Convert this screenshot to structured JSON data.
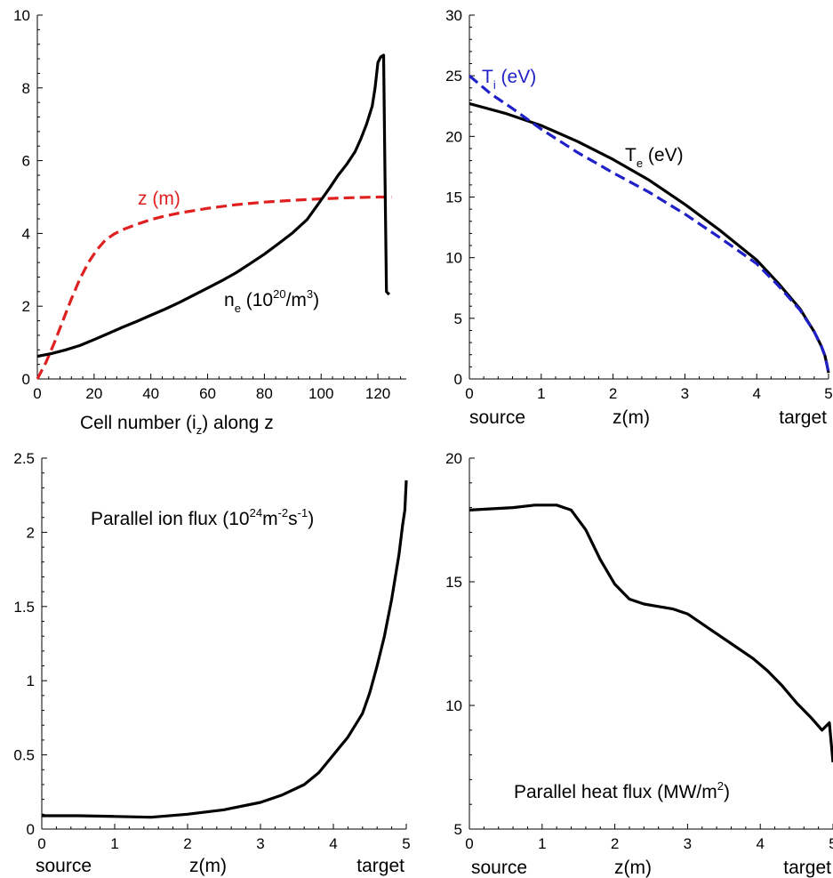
{
  "chart_data": [
    {
      "type": "line",
      "xlabel": "Cell number (i_z) along z",
      "xlabel_parts": {
        "main": "Cell number (i",
        "sub": "z",
        "tail": ") along z"
      },
      "xlim": [
        0,
        130
      ],
      "ylim": [
        0,
        10
      ],
      "xticks": [
        0,
        20,
        40,
        60,
        80,
        100,
        120
      ],
      "yticks": [
        0,
        2,
        4,
        6,
        8,
        10
      ],
      "grid": false,
      "series": [
        {
          "name": "z (m)",
          "color": "#e02020",
          "dash": true,
          "x": [
            0,
            3,
            6,
            9,
            12,
            15,
            18,
            21,
            24,
            27,
            30,
            35,
            40,
            45,
            50,
            60,
            70,
            80,
            90,
            100,
            110,
            120,
            125
          ],
          "y": [
            0.0,
            0.45,
            1.0,
            1.6,
            2.2,
            2.75,
            3.2,
            3.55,
            3.82,
            3.98,
            4.1,
            4.25,
            4.38,
            4.48,
            4.56,
            4.69,
            4.79,
            4.86,
            4.91,
            4.95,
            4.98,
            5.0,
            5.0
          ]
        },
        {
          "name": "n_e (10^20/m^3)",
          "color": "#000000",
          "dash": false,
          "x": [
            0,
            5,
            10,
            15,
            20,
            25,
            30,
            35,
            40,
            45,
            50,
            55,
            60,
            65,
            70,
            75,
            80,
            85,
            90,
            95,
            98,
            100,
            103,
            106,
            109,
            112,
            114,
            116,
            118,
            119,
            120,
            121,
            122,
            122.5,
            123,
            124
          ],
          "y": [
            0.62,
            0.7,
            0.8,
            0.92,
            1.08,
            1.25,
            1.42,
            1.58,
            1.75,
            1.92,
            2.1,
            2.3,
            2.5,
            2.7,
            2.92,
            3.17,
            3.43,
            3.72,
            4.02,
            4.38,
            4.7,
            4.92,
            5.25,
            5.6,
            5.9,
            6.25,
            6.6,
            7.0,
            7.5,
            8.0,
            8.7,
            8.85,
            8.9,
            5.5,
            2.4,
            2.32
          ]
        }
      ],
      "annotations": {
        "z": "z (m)",
        "ne_main": "n",
        "ne_sub": "e",
        "ne_pre": " (10",
        "ne_exp1": "20",
        "ne_mid": "/m",
        "ne_exp2": "3",
        "ne_post": ")"
      }
    },
    {
      "type": "line",
      "xlabel": "z(m)",
      "xlabel_left": "source",
      "xlabel_right": "target",
      "xlim": [
        0,
        5
      ],
      "ylim": [
        0,
        30
      ],
      "xticks": [
        0,
        1,
        2,
        3,
        4,
        5
      ],
      "yticks": [
        0,
        5,
        10,
        15,
        20,
        25,
        30
      ],
      "grid": false,
      "series": [
        {
          "name": "T_e (eV)",
          "color": "#000000",
          "dash": false,
          "x": [
            0,
            0.5,
            1.0,
            1.5,
            2.0,
            2.5,
            3.0,
            3.5,
            4.0,
            4.3,
            4.6,
            4.8,
            4.9,
            4.95,
            4.98,
            5.0
          ],
          "y": [
            22.7,
            21.9,
            20.9,
            19.6,
            18.1,
            16.4,
            14.4,
            12.2,
            9.8,
            7.9,
            5.8,
            3.9,
            2.7,
            1.9,
            1.1,
            0.5
          ]
        },
        {
          "name": "T_i (eV)",
          "color": "#2020c8",
          "dash": true,
          "x": [
            0,
            0.3,
            0.6,
            1.0,
            1.5,
            2.0,
            2.5,
            3.0,
            3.5,
            4.0,
            4.3,
            4.6,
            4.8,
            4.9,
            4.95,
            4.98,
            5.0
          ],
          "y": [
            25.0,
            23.5,
            22.3,
            20.6,
            18.7,
            17.0,
            15.4,
            13.6,
            11.6,
            9.5,
            7.7,
            5.7,
            3.9,
            2.7,
            1.9,
            1.1,
            0.5
          ]
        }
      ],
      "annotations": {
        "ti_main": "T",
        "ti_sub": "i",
        "ti_post": " (eV)",
        "te_main": "T",
        "te_sub": "e",
        "te_post": " (eV)"
      }
    },
    {
      "type": "line",
      "xlabel": "z(m)",
      "xlabel_left": "source",
      "xlabel_right": "target",
      "xlim": [
        0,
        5
      ],
      "ylim": [
        0,
        2.5
      ],
      "xticks": [
        0,
        1,
        2,
        3,
        4,
        5
      ],
      "yticks": [
        0,
        0.5,
        1,
        1.5,
        2,
        2.5
      ],
      "ytick_labels": [
        "0",
        "0.5",
        "1",
        "1.5",
        "2",
        "2.5"
      ],
      "grid": false,
      "series": [
        {
          "name": "Parallel ion flux",
          "color": "#000000",
          "dash": false,
          "x": [
            0,
            0.5,
            1.0,
            1.5,
            2.0,
            2.5,
            3.0,
            3.3,
            3.6,
            3.8,
            4.0,
            4.2,
            4.4,
            4.5,
            4.6,
            4.7,
            4.8,
            4.85,
            4.9,
            4.95,
            4.98,
            5.0
          ],
          "y": [
            0.09,
            0.09,
            0.085,
            0.08,
            0.1,
            0.13,
            0.18,
            0.23,
            0.3,
            0.38,
            0.5,
            0.62,
            0.78,
            0.92,
            1.1,
            1.3,
            1.55,
            1.7,
            1.85,
            2.05,
            2.15,
            2.35
          ]
        }
      ],
      "annotations": {
        "pre": "Parallel ion flux (10",
        "e1": "24",
        "m": "m",
        "e2": "-2",
        "s": "s",
        "e3": "-1",
        "post": ")"
      }
    },
    {
      "type": "line",
      "xlabel": "z(m)",
      "xlabel_left": "source",
      "xlabel_right": "target",
      "xlim": [
        0,
        5
      ],
      "ylim": [
        5,
        20
      ],
      "xticks": [
        0,
        1,
        2,
        3,
        4,
        5
      ],
      "yticks": [
        5,
        10,
        15,
        20
      ],
      "grid": false,
      "series": [
        {
          "name": "Parallel heat flux",
          "color": "#000000",
          "dash": false,
          "x": [
            0,
            0.3,
            0.6,
            0.9,
            1.2,
            1.4,
            1.6,
            1.8,
            2.0,
            2.2,
            2.4,
            2.6,
            2.8,
            3.0,
            3.3,
            3.6,
            3.9,
            4.1,
            4.3,
            4.5,
            4.7,
            4.85,
            4.95,
            5.0
          ],
          "y": [
            17.9,
            17.95,
            18.0,
            18.1,
            18.1,
            17.9,
            17.1,
            15.9,
            14.9,
            14.3,
            14.1,
            14.0,
            13.9,
            13.7,
            13.1,
            12.5,
            11.9,
            11.4,
            10.8,
            10.1,
            9.5,
            9.0,
            9.3,
            7.7
          ]
        }
      ],
      "annotations": {
        "pre": "Parallel heat flux (MW/m",
        "e1": "2",
        "post": ")"
      }
    }
  ]
}
